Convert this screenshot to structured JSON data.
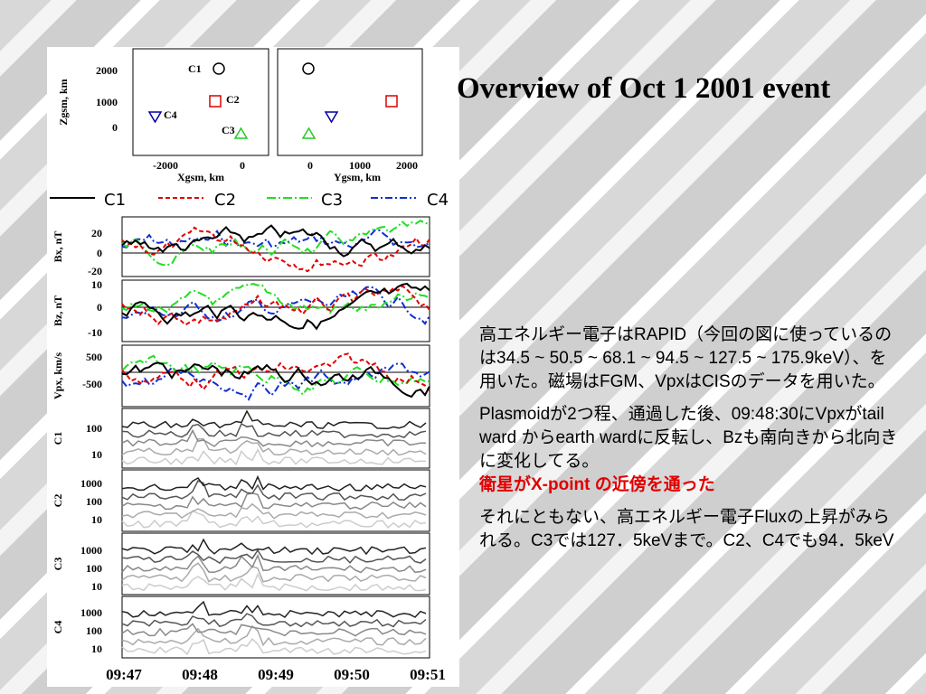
{
  "title": "Overview of Oct 1 2001 event",
  "figure": {
    "orbit": {
      "z_label": "Zgsm, km",
      "z_ticks": [
        "2000",
        "1000",
        "0"
      ],
      "x_label": "Xgsm, km",
      "x_ticks": [
        "-2000",
        "0"
      ],
      "y_label": "Ygsm, km",
      "y_ticks": [
        "0",
        "1000",
        "2000"
      ],
      "sc_labels": [
        "C1",
        "C2",
        "C4",
        "C3"
      ]
    },
    "legend": [
      "C1",
      "C2",
      "C3",
      "C4"
    ],
    "panels": [
      {
        "label": "Bx, nT",
        "ticks": [
          "20",
          "0",
          "-20"
        ]
      },
      {
        "label": "Bz, nT",
        "ticks": [
          "10",
          "0",
          "-10"
        ]
      },
      {
        "label": "Vpx, km/s",
        "ticks": [
          "500",
          "-500"
        ]
      },
      {
        "label": "C1",
        "ticks": [
          "100",
          "10"
        ]
      },
      {
        "label": "C2",
        "ticks": [
          "1000",
          "100",
          "10"
        ]
      },
      {
        "label": "C3",
        "ticks": [
          "1000",
          "100",
          "10"
        ]
      },
      {
        "label": "C4",
        "ticks": [
          "1000",
          "100",
          "10"
        ]
      }
    ],
    "time_ticks": [
      "09:47",
      "09:48",
      "09:49",
      "09:50",
      "09:51"
    ]
  },
  "paragraphs": [
    [
      "高エネルギー電子はRAPID（今回の図に使っているのは34.5 ~ 50.5 ~ 68.1 ~ 94.5 ~ 127.5 ~ 175.9keV）、を用いた。磁場はFGM、VpxはCISのデータを用いた。"
    ],
    [
      "Plasmoidが2つ程、通過した後、09:48:30にVpxがtail ward からearth wardに反転し、Bzも南向きから北向きに変化してる。",
      "衛星がX-point の近傍を通った"
    ],
    [
      "それにともない、高エネルギー電子Fluxの上昇がみられる。C3では127．5keVまで。C2、C4でも94．5keV"
    ]
  ]
}
